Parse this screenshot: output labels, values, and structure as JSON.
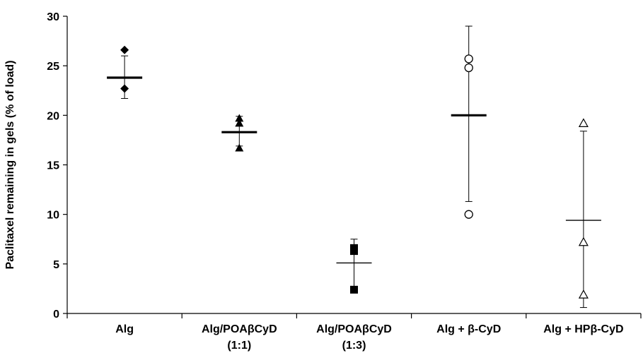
{
  "chart_data": {
    "type": "scatter",
    "title": "",
    "xlabel": "",
    "ylabel": "Paclitaxel remaining in gels (% of load)",
    "ylim": [
      0,
      30
    ],
    "yticks": [
      0,
      5,
      10,
      15,
      20,
      25,
      30
    ],
    "grid": false,
    "legend": "none",
    "categories": [
      {
        "line1": "Alg",
        "line2": ""
      },
      {
        "line1": "Alg/POAβCyD",
        "line2": "(1:1)"
      },
      {
        "line1": "Alg/POAβCyD",
        "line2": "(1:3)"
      },
      {
        "line1": "Alg + β-CyD",
        "line2": ""
      },
      {
        "line1": "Alg + HPβ-CyD",
        "line2": ""
      }
    ],
    "series": [
      {
        "marker": "diamond-filled",
        "points": [
          26.6,
          22.7
        ],
        "mean": 23.8,
        "error_low": 21.7,
        "error_high": 26.0,
        "mean_bar": "thick"
      },
      {
        "marker": "triangle-filled",
        "points": [
          19.7,
          19.2,
          16.7
        ],
        "mean": 18.3,
        "error_low": 16.9,
        "error_high": 19.9,
        "mean_bar": "thick"
      },
      {
        "marker": "square-filled",
        "points": [
          6.6,
          6.3,
          2.4
        ],
        "mean": 5.1,
        "error_low": 2.5,
        "error_high": 7.5,
        "mean_bar": "thin"
      },
      {
        "marker": "circle-open",
        "points": [
          25.7,
          24.8,
          10.0
        ],
        "mean": 20.0,
        "error_low": 11.3,
        "error_high": 29.0,
        "mean_bar": "thick"
      },
      {
        "marker": "triangle-open",
        "points": [
          19.2,
          7.2,
          1.9
        ],
        "mean": 9.4,
        "error_low": 0.6,
        "error_high": 18.4,
        "mean_bar": "thin"
      }
    ]
  }
}
